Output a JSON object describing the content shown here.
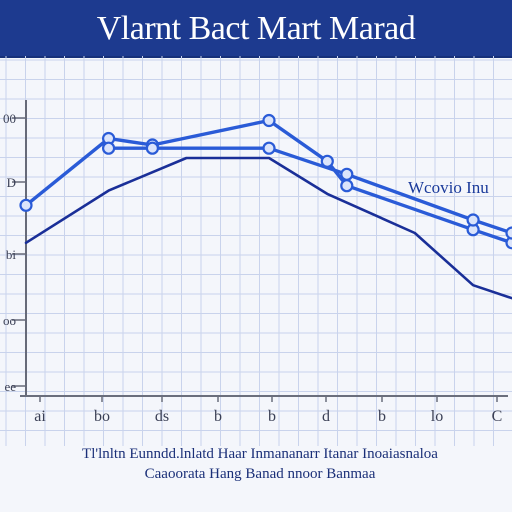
{
  "title": "Vlarnt Bact Mart Marad",
  "chart_data": {
    "type": "line",
    "x": [
      1,
      2,
      3,
      4,
      5,
      6,
      7,
      8
    ],
    "x_tick_labels": [
      "ai",
      "bo",
      "ds",
      "b",
      "b",
      "d",
      "b",
      "lo",
      "C"
    ],
    "y_tick_labels": [
      "00",
      "D",
      "bi",
      "oo",
      "ee"
    ],
    "grid": true,
    "legend_label": "Wcovio Inu",
    "series": [
      {
        "color": "#2a5bd7",
        "values": [
          [
            0,
            0.585
          ],
          [
            0.17,
            0.79
          ],
          [
            0.26,
            0.77
          ],
          [
            0.5,
            0.845
          ],
          [
            0.62,
            0.72
          ],
          [
            0.66,
            0.645
          ],
          [
            0.92,
            0.51
          ],
          [
            1.0,
            0.47
          ]
        ]
      },
      {
        "color": "#2a5bd7",
        "values": [
          [
            0.17,
            0.76
          ],
          [
            0.26,
            0.76
          ],
          [
            0.5,
            0.76
          ],
          [
            0.66,
            0.68
          ],
          [
            0.92,
            0.54
          ],
          [
            1.0,
            0.5
          ]
        ]
      },
      {
        "color": "#1a2f98",
        "values": [
          [
            0,
            0.47
          ],
          [
            0.17,
            0.63
          ],
          [
            0.33,
            0.73
          ],
          [
            0.5,
            0.73
          ],
          [
            0.62,
            0.62
          ],
          [
            0.8,
            0.5
          ],
          [
            0.92,
            0.34
          ],
          [
            1.0,
            0.3
          ]
        ]
      }
    ]
  },
  "footer": {
    "line1": "Tl'lnltn Eunndd.lnlatd Haar Inmananarr Itanar Inoaiasnaloa",
    "line2": "Caaoorata Hang Banad nnoor Banmaa"
  },
  "colors": {
    "header": "#1d3a8f",
    "grid": "#c9d3ec",
    "line": "#2a5bd7",
    "line_dark": "#1a2f98",
    "text": "#1a2f78"
  }
}
